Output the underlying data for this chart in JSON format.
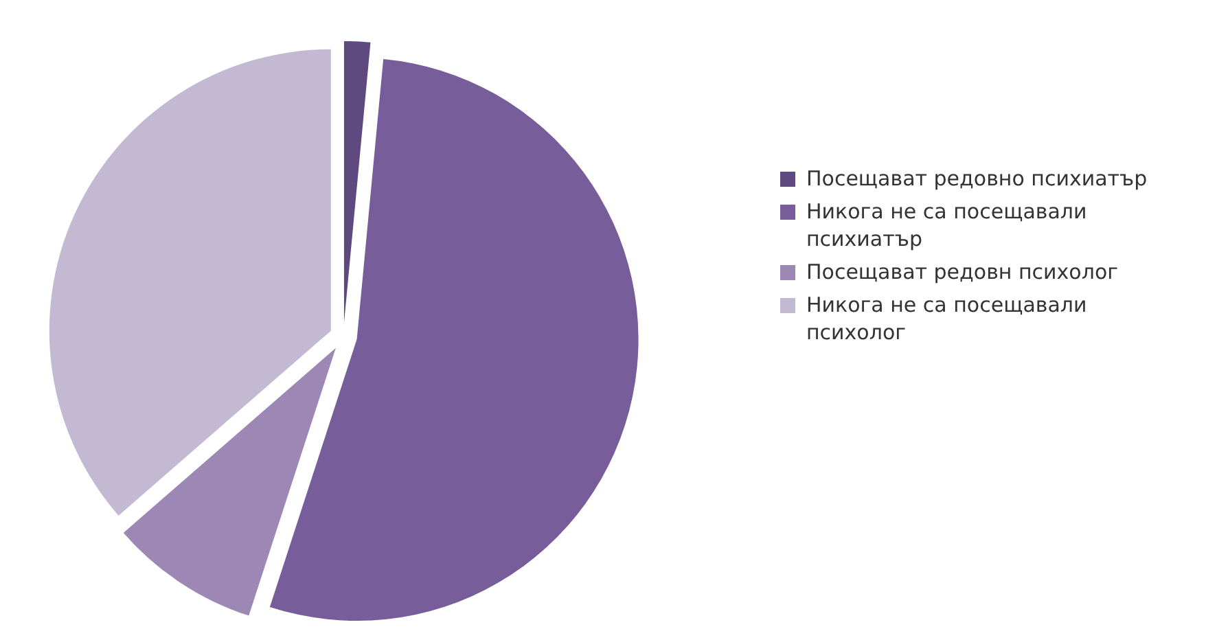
{
  "chart_data": {
    "type": "pie",
    "categories": [
      "Посещават редовно психиатър",
      "Никога не са посещавали психиатър",
      "Посещават редовн психолог",
      "Никога не са посещавали психолог"
    ],
    "values": [
      1.5,
      53.5,
      8.6,
      36.4
    ],
    "colors": [
      "#5f4a80",
      "#775d99",
      "#9d88b5",
      "#c3b9d3"
    ],
    "legend": "right"
  }
}
